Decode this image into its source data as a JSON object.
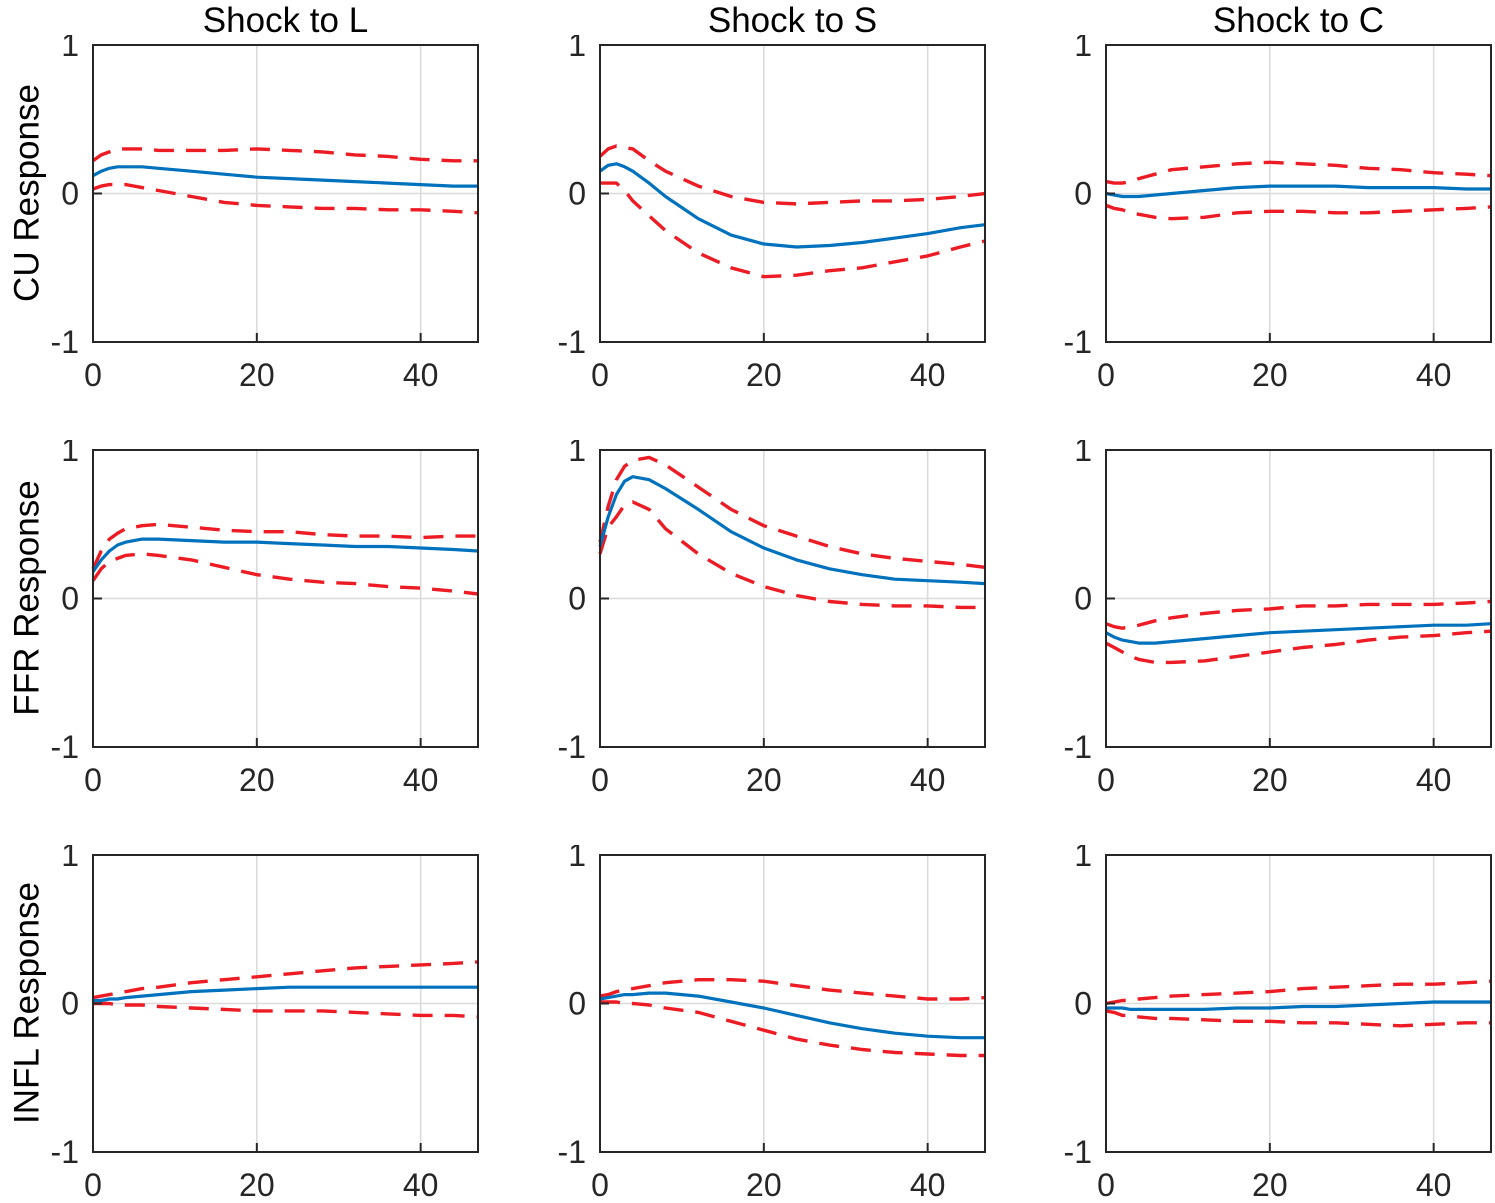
{
  "figure": {
    "background": "#FFFFFF",
    "legend_visible": false
  },
  "chart_data": {
    "type": "line",
    "title": "",
    "col_titles": [
      "Shock to L",
      "Shock to S",
      "Shock to C"
    ],
    "row_labels": [
      "CU Response",
      "FFR Response",
      "INFL Response"
    ],
    "xlim": [
      0,
      47
    ],
    "ylim": [
      -1,
      1
    ],
    "xtick_labels": [
      "0",
      "20",
      "40"
    ],
    "xtick_values": [
      0,
      20,
      40
    ],
    "ytick_labels": [
      "1",
      "0",
      "-1"
    ],
    "ytick_values": [
      1,
      0,
      -1
    ],
    "grid": {
      "x_values": [
        20,
        40
      ],
      "y_values": [
        0
      ]
    },
    "style": {
      "median_color": "#0072BD",
      "band_color": "#ED1C24",
      "grid_color": "#DBDBDB",
      "axis_color": "#262626",
      "background": "#FFFFFF",
      "median_style": "solid",
      "band_style": "dashed"
    },
    "series_names": [
      "median",
      "upper_band",
      "lower_band"
    ],
    "x": [
      0,
      1,
      2,
      3,
      4,
      6,
      8,
      12,
      16,
      20,
      24,
      28,
      32,
      36,
      40,
      44,
      47
    ],
    "panels": [
      {
        "id": "cu-l",
        "row_label": "CU Response",
        "col_title": "Shock to L",
        "series": {
          "median": [
            0.12,
            0.15,
            0.17,
            0.18,
            0.18,
            0.18,
            0.17,
            0.15,
            0.13,
            0.11,
            0.1,
            0.09,
            0.08,
            0.07,
            0.06,
            0.05,
            0.05
          ],
          "upper_band": [
            0.22,
            0.26,
            0.28,
            0.3,
            0.3,
            0.3,
            0.29,
            0.29,
            0.29,
            0.3,
            0.29,
            0.28,
            0.26,
            0.25,
            0.23,
            0.22,
            0.22
          ],
          "lower_band": [
            0.03,
            0.05,
            0.06,
            0.06,
            0.06,
            0.04,
            0.02,
            -0.02,
            -0.06,
            -0.08,
            -0.09,
            -0.1,
            -0.1,
            -0.11,
            -0.11,
            -0.12,
            -0.13
          ]
        }
      },
      {
        "id": "cu-s",
        "row_label": "CU Response",
        "col_title": "Shock to S",
        "series": {
          "median": [
            0.15,
            0.19,
            0.2,
            0.18,
            0.15,
            0.07,
            -0.02,
            -0.17,
            -0.28,
            -0.34,
            -0.36,
            -0.35,
            -0.33,
            -0.3,
            -0.27,
            -0.23,
            -0.21
          ],
          "upper_band": [
            0.25,
            0.3,
            0.32,
            0.31,
            0.3,
            0.22,
            0.15,
            0.05,
            -0.02,
            -0.06,
            -0.07,
            -0.06,
            -0.05,
            -0.05,
            -0.04,
            -0.02,
            0.0
          ],
          "lower_band": [
            0.07,
            0.07,
            0.07,
            0.02,
            -0.05,
            -0.15,
            -0.25,
            -0.4,
            -0.5,
            -0.56,
            -0.55,
            -0.52,
            -0.5,
            -0.46,
            -0.42,
            -0.36,
            -0.32
          ]
        }
      },
      {
        "id": "cu-c",
        "row_label": "CU Response",
        "col_title": "Shock to C",
        "series": {
          "median": [
            0.0,
            -0.01,
            -0.02,
            -0.02,
            -0.02,
            -0.01,
            0.0,
            0.02,
            0.04,
            0.05,
            0.05,
            0.05,
            0.04,
            0.04,
            0.04,
            0.03,
            0.03
          ],
          "upper_band": [
            0.08,
            0.07,
            0.07,
            0.08,
            0.1,
            0.13,
            0.16,
            0.18,
            0.2,
            0.21,
            0.2,
            0.19,
            0.17,
            0.16,
            0.14,
            0.13,
            0.12
          ],
          "lower_band": [
            -0.08,
            -0.1,
            -0.11,
            -0.13,
            -0.14,
            -0.16,
            -0.17,
            -0.16,
            -0.13,
            -0.12,
            -0.12,
            -0.13,
            -0.13,
            -0.12,
            -0.11,
            -0.1,
            -0.09
          ]
        }
      },
      {
        "id": "ffr-l",
        "row_label": "FFR Response",
        "col_title": "Shock to L",
        "series": {
          "median": [
            0.18,
            0.26,
            0.32,
            0.36,
            0.38,
            0.4,
            0.4,
            0.39,
            0.38,
            0.38,
            0.37,
            0.36,
            0.35,
            0.35,
            0.34,
            0.33,
            0.32
          ],
          "upper_band": [
            0.2,
            0.32,
            0.4,
            0.44,
            0.47,
            0.49,
            0.5,
            0.48,
            0.46,
            0.45,
            0.45,
            0.43,
            0.42,
            0.42,
            0.41,
            0.42,
            0.42
          ],
          "lower_band": [
            0.12,
            0.2,
            0.25,
            0.27,
            0.29,
            0.3,
            0.29,
            0.26,
            0.21,
            0.16,
            0.13,
            0.11,
            0.1,
            0.08,
            0.07,
            0.05,
            0.03
          ]
        }
      },
      {
        "id": "ffr-s",
        "row_label": "FFR Response",
        "col_title": "Shock to S",
        "series": {
          "median": [
            0.35,
            0.55,
            0.7,
            0.79,
            0.82,
            0.8,
            0.74,
            0.6,
            0.45,
            0.34,
            0.26,
            0.2,
            0.16,
            0.13,
            0.12,
            0.11,
            0.1
          ],
          "upper_band": [
            0.38,
            0.62,
            0.8,
            0.89,
            0.93,
            0.95,
            0.9,
            0.75,
            0.6,
            0.49,
            0.42,
            0.35,
            0.3,
            0.27,
            0.25,
            0.23,
            0.21
          ],
          "lower_band": [
            0.3,
            0.48,
            0.55,
            0.63,
            0.65,
            0.6,
            0.47,
            0.3,
            0.17,
            0.08,
            0.02,
            -0.02,
            -0.04,
            -0.05,
            -0.05,
            -0.06,
            -0.06
          ]
        }
      },
      {
        "id": "ffr-c",
        "row_label": "FFR Response",
        "col_title": "Shock to C",
        "series": {
          "median": [
            -0.23,
            -0.26,
            -0.28,
            -0.29,
            -0.3,
            -0.3,
            -0.29,
            -0.27,
            -0.25,
            -0.23,
            -0.22,
            -0.21,
            -0.2,
            -0.19,
            -0.18,
            -0.18,
            -0.17
          ],
          "upper_band": [
            -0.17,
            -0.19,
            -0.2,
            -0.19,
            -0.18,
            -0.15,
            -0.13,
            -0.1,
            -0.08,
            -0.07,
            -0.05,
            -0.05,
            -0.04,
            -0.04,
            -0.04,
            -0.03,
            -0.02
          ],
          "lower_band": [
            -0.3,
            -0.33,
            -0.36,
            -0.39,
            -0.41,
            -0.43,
            -0.43,
            -0.42,
            -0.39,
            -0.36,
            -0.33,
            -0.31,
            -0.28,
            -0.26,
            -0.25,
            -0.23,
            -0.22
          ]
        }
      },
      {
        "id": "infl-l",
        "row_label": "INFL Response",
        "col_title": "Shock to L",
        "series": {
          "median": [
            0.02,
            0.02,
            0.03,
            0.03,
            0.04,
            0.05,
            0.06,
            0.08,
            0.09,
            0.1,
            0.11,
            0.11,
            0.11,
            0.11,
            0.11,
            0.11,
            0.11
          ],
          "upper_band": [
            0.04,
            0.05,
            0.06,
            0.07,
            0.08,
            0.1,
            0.11,
            0.14,
            0.16,
            0.18,
            0.2,
            0.22,
            0.24,
            0.25,
            0.26,
            0.27,
            0.28
          ],
          "lower_band": [
            0.0,
            0.0,
            0.0,
            -0.01,
            -0.01,
            -0.01,
            -0.02,
            -0.03,
            -0.04,
            -0.05,
            -0.05,
            -0.05,
            -0.06,
            -0.07,
            -0.08,
            -0.08,
            -0.09
          ]
        }
      },
      {
        "id": "infl-s",
        "row_label": "INFL Response",
        "col_title": "Shock to S",
        "series": {
          "median": [
            0.03,
            0.04,
            0.05,
            0.06,
            0.06,
            0.07,
            0.07,
            0.05,
            0.01,
            -0.03,
            -0.08,
            -0.13,
            -0.17,
            -0.2,
            -0.22,
            -0.23,
            -0.23
          ],
          "upper_band": [
            0.05,
            0.06,
            0.08,
            0.09,
            0.1,
            0.12,
            0.14,
            0.16,
            0.16,
            0.15,
            0.12,
            0.09,
            0.07,
            0.05,
            0.03,
            0.03,
            0.04
          ],
          "lower_band": [
            0.01,
            0.01,
            0.01,
            0.0,
            0.0,
            -0.01,
            -0.03,
            -0.06,
            -0.12,
            -0.18,
            -0.24,
            -0.28,
            -0.31,
            -0.33,
            -0.34,
            -0.35,
            -0.35
          ]
        }
      },
      {
        "id": "infl-c",
        "row_label": "INFL Response",
        "col_title": "Shock to C",
        "series": {
          "median": [
            -0.03,
            -0.03,
            -0.03,
            -0.04,
            -0.04,
            -0.04,
            -0.04,
            -0.04,
            -0.03,
            -0.03,
            -0.02,
            -0.02,
            -0.01,
            0.0,
            0.01,
            0.01,
            0.01
          ],
          "upper_band": [
            0.0,
            0.01,
            0.02,
            0.02,
            0.03,
            0.04,
            0.05,
            0.06,
            0.07,
            0.08,
            0.1,
            0.11,
            0.12,
            0.13,
            0.13,
            0.14,
            0.15
          ],
          "lower_band": [
            -0.05,
            -0.06,
            -0.08,
            -0.08,
            -0.09,
            -0.1,
            -0.1,
            -0.11,
            -0.12,
            -0.12,
            -0.13,
            -0.13,
            -0.14,
            -0.15,
            -0.14,
            -0.13,
            -0.13
          ]
        }
      }
    ]
  }
}
